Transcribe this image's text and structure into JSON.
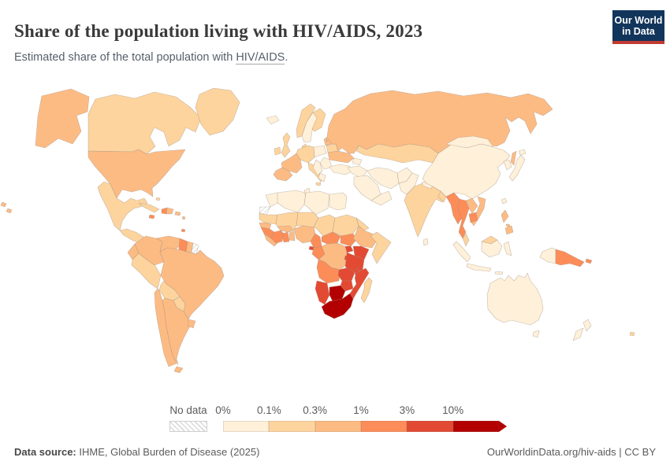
{
  "header": {
    "title": "Share of the population living with HIV/AIDS, 2023",
    "subtitle_prefix": "Estimated share of the total population with ",
    "subtitle_link": "HIV/AIDS",
    "subtitle_suffix": ".",
    "logo_line1": "Our World",
    "logo_line2": "in Data"
  },
  "brand": {
    "logo_bg": "#12355b",
    "logo_accent": "#c13b33"
  },
  "legend": {
    "no_data_label": "No data",
    "ticks": [
      "0%",
      "0.1%",
      "0.3%",
      "1%",
      "3%",
      "10%"
    ]
  },
  "footer": {
    "source_label": "Data source:",
    "source_value": " IHME, Global Burden of Disease (2025)",
    "url_text": "OurWorldinData.org/hiv-aids",
    "divider": " | ",
    "license": "CC BY"
  },
  "chart_data": {
    "type": "choropleth-map",
    "title": "Share of the population living with HIV/AIDS, 2023",
    "unit": "% of total population",
    "legend_ticks": [
      "0%",
      "0.1%",
      "0.3%",
      "1%",
      "3%",
      "10%"
    ],
    "bins": [
      {
        "range": "0-0.1%",
        "color": "#fef0d9"
      },
      {
        "range": "0.1-0.3%",
        "color": "#fdd49e"
      },
      {
        "range": "0.3-1%",
        "color": "#fdbb84"
      },
      {
        "range": "1-3%",
        "color": "#fc8d59"
      },
      {
        "range": "3-10%",
        "color": "#e34a33"
      },
      {
        "range": ">10%",
        "color": "#b30000"
      }
    ],
    "no_data": {
      "label": "No data",
      "pattern": "hatched"
    },
    "regions": {
      "United States": 2,
      "Canada": 1,
      "Greenland": 1,
      "Mexico": 1,
      "Guatemala": 1,
      "Panama": 2,
      "Cuba": 1,
      "Bahamas": 1,
      "Jamaica": 3,
      "Haiti": 3,
      "Dominican Republic": 2,
      "Puerto Rico": 2,
      "Lesser Antilles": 2,
      "Trinidad and Tobago": 3,
      "Colombia": 2,
      "Venezuela": 2,
      "Guyana": 3,
      "Suriname": 2,
      "French Guiana": "no-data",
      "Ecuador": 2,
      "Peru": 1,
      "Brazil": 2,
      "Bolivia": 1,
      "Paraguay": 1,
      "Chile": 2,
      "Argentina": 2,
      "Uruguay": 2,
      "Iceland": 0,
      "Ireland": 1,
      "United Kingdom": 1,
      "Norway": 1,
      "Sweden": 0,
      "Finland": 1,
      "Denmark": 1,
      "Germany": 1,
      "France": 2,
      "Spain": 2,
      "Italy": 1,
      "Poland": 0,
      "Baltic states": 2,
      "Belarus": 1,
      "Ukraine": 2,
      "Romania": 0,
      "Balkans": 0,
      "Greece": 0,
      "Turkey": 0,
      "Russia": 2,
      "Central Asia": 1,
      "Caucasus": 0,
      "Iraq": 0,
      "Saudi Arabia": 0,
      "Yemen and Oman": 0,
      "Iran": 0,
      "Afghanistan": 0,
      "Pakistan": 0,
      "India": 1,
      "Nepal": 0,
      "Bangladesh": 1,
      "Sri Lanka": 0,
      "China": 0,
      "Mongolia": 0,
      "South Korea": 0,
      "Japan": 0,
      "Taiwan": 0,
      "Myanmar": 3,
      "Thailand": 3,
      "Laos": 2,
      "Vietnam": 2,
      "Cambodia": 3,
      "Malaysia": 1,
      "Indonesia": 0,
      "Philippines": 2,
      "Papua New Guinea": 3,
      "Australia": 0,
      "New Zealand": 0,
      "Fiji": 1,
      "Morocco": 0,
      "Western Sahara": "no-data",
      "Algeria": 0,
      "Tunisia": 0,
      "Libya": 0,
      "Egypt": 0,
      "Mauritania": 1,
      "Mali": 1,
      "Niger": 1,
      "Chad": 1,
      "Sudan": 1,
      "Eritrea": 1,
      "Senegal": 2,
      "Guinea": 3,
      "Sierra Leone": 2,
      "Cote d'Ivoire": 3,
      "Ghana": 3,
      "Togo and Benin": 2,
      "Burkina Faso": 2,
      "Nigeria": 2,
      "Cameroon": 3,
      "Central African Republic": 3,
      "South Sudan": 3,
      "Ethiopia": 2,
      "Somalia": 1,
      "Congo": 3,
      "Equatorial Guinea": 4,
      "Democratic Republic of Congo": 2,
      "Uganda": 4,
      "Kenya": 4,
      "Rwanda": 4,
      "Tanzania": 4,
      "Angola": 3,
      "Zambia": 4,
      "Malawi": 4,
      "Mozambique": 4,
      "Zimbabwe": 4,
      "Namibia": 4,
      "Botswana": 5,
      "South Africa": 5,
      "Madagascar": 1
    }
  }
}
